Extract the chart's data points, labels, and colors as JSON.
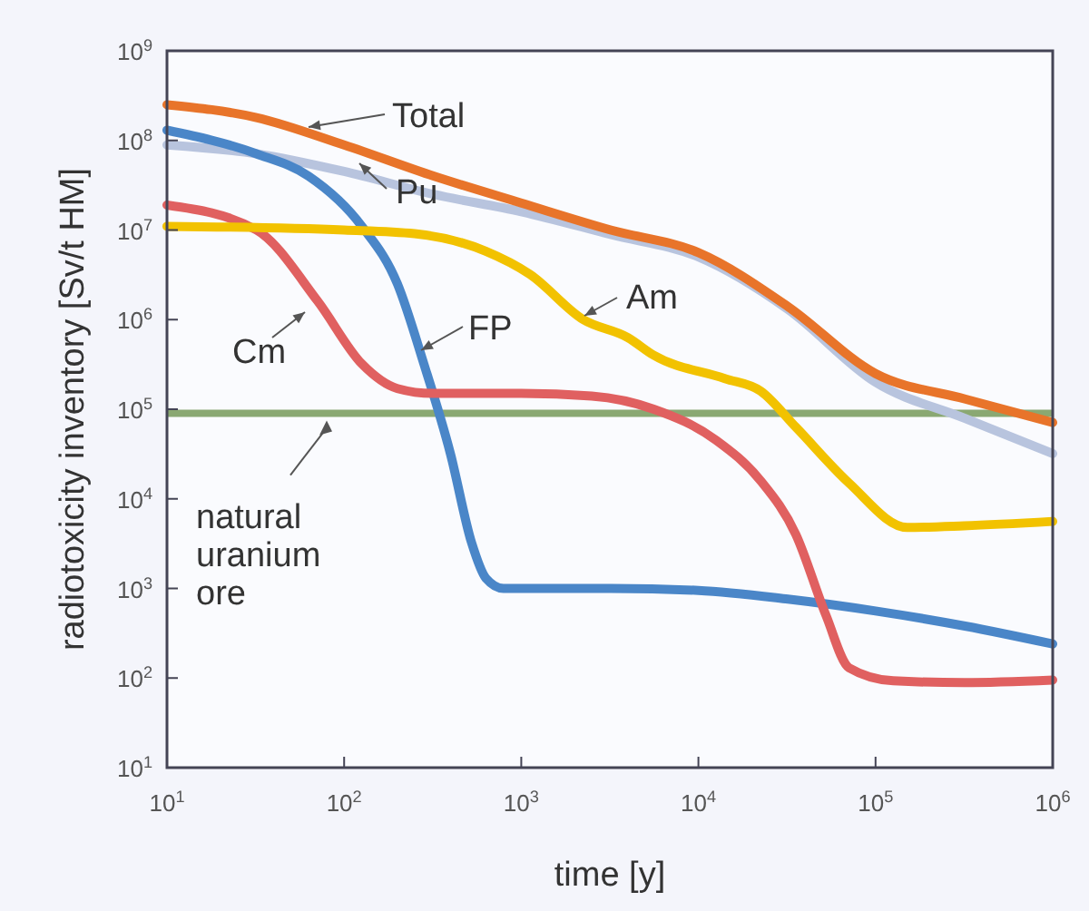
{
  "chart_data": {
    "type": "line",
    "xlabel": "time [y]",
    "ylabel": "radiotoxicity inventory [Sv/t HM]",
    "log": "xy",
    "grid": false,
    "marker": "none",
    "line_style": "solid",
    "xlim": [
      10,
      1000000
    ],
    "ylim": [
      10,
      1000000000
    ],
    "xticks": [
      {
        "value": 10,
        "label": "10$^{1}$"
      },
      {
        "value": 100,
        "label": "10$^{2}$"
      },
      {
        "value": 1000,
        "label": "10$^{3}$"
      },
      {
        "value": 10000,
        "label": "10$^{4}$"
      },
      {
        "value": 100000,
        "label": "10$^{5}$"
      },
      {
        "value": 1000000,
        "label": "10$^{6}$"
      }
    ],
    "yticks": [
      {
        "value": 10,
        "label": "10$^{1}$"
      },
      {
        "value": 100,
        "label": "10$^{2}$"
      },
      {
        "value": 1000,
        "label": "10$^{3}$"
      },
      {
        "value": 10000,
        "label": "10$^{4}$"
      },
      {
        "value": 100000,
        "label": "10$^{5}$"
      },
      {
        "value": 1000000,
        "label": "10$^{6}$"
      },
      {
        "value": 10000000,
        "label": "10$^{7}$"
      },
      {
        "value": 100000000,
        "label": "10$^{8}$"
      },
      {
        "value": 1000000000,
        "label": "10$^{9}$"
      }
    ],
    "ref_lines": [
      {
        "axis": "y",
        "value": 90000,
        "label": "natural uranium ore",
        "color": "#8aa872"
      }
    ],
    "series": [
      {
        "name": "Pu",
        "color": "#b8c4de",
        "x": [
          10,
          32,
          100,
          320,
          1000,
          3200,
          10000,
          32000,
          100000,
          320000,
          1000000
        ],
        "values": [
          89000000,
          71000000,
          45000000,
          25000000,
          16000000,
          8900000,
          5000000,
          1300000,
          200000,
          79000,
          32000
        ]
      },
      {
        "name": "Total",
        "color": "#e8742a",
        "x": [
          10,
          32,
          100,
          320,
          1000,
          3200,
          10000,
          32000,
          100000,
          320000,
          1000000
        ],
        "values": [
          250000000,
          180000000,
          89000000,
          40000000,
          20000000,
          10000000,
          5600000,
          1400000,
          250000,
          130000,
          71000
        ]
      },
      {
        "name": "FP",
        "color": "#4a86c8",
        "x": [
          10,
          32,
          63,
          126,
          200,
          282,
          398,
          525,
          631,
          794,
          3200,
          10000,
          32000,
          100000,
          320000,
          1000000
        ],
        "values": [
          130000000,
          71000000,
          40000000,
          11000000,
          2500000,
          320000,
          32000,
          3200,
          1300,
          1000,
          1000,
          950,
          760,
          560,
          380,
          240
        ]
      },
      {
        "name": "Cm",
        "color": "#e06060",
        "x": [
          10,
          32,
          71,
          126,
          200,
          316,
          1000,
          2500,
          5600,
          12600,
          22400,
          35500,
          52500,
          70800,
          126000,
          316000,
          1000000
        ],
        "values": [
          19000000,
          10000000,
          1600000,
          320000,
          170000,
          150000,
          150000,
          140000,
          100000,
          45000,
          16000,
          4000,
          500,
          130,
          93,
          89,
          95
        ]
      },
      {
        "name": "Am",
        "color": "#f2c200",
        "x": [
          10,
          100,
          250,
          630,
          1120,
          2240,
          4000,
          5600,
          14100,
          22400,
          35500,
          70800,
          151000,
          316000,
          1000000
        ],
        "values": [
          11000000,
          10000000,
          9100000,
          5800000,
          3200000,
          1000000,
          630000,
          400000,
          220000,
          160000,
          63000,
          15000,
          4800,
          5000,
          5600
        ]
      }
    ]
  }
}
